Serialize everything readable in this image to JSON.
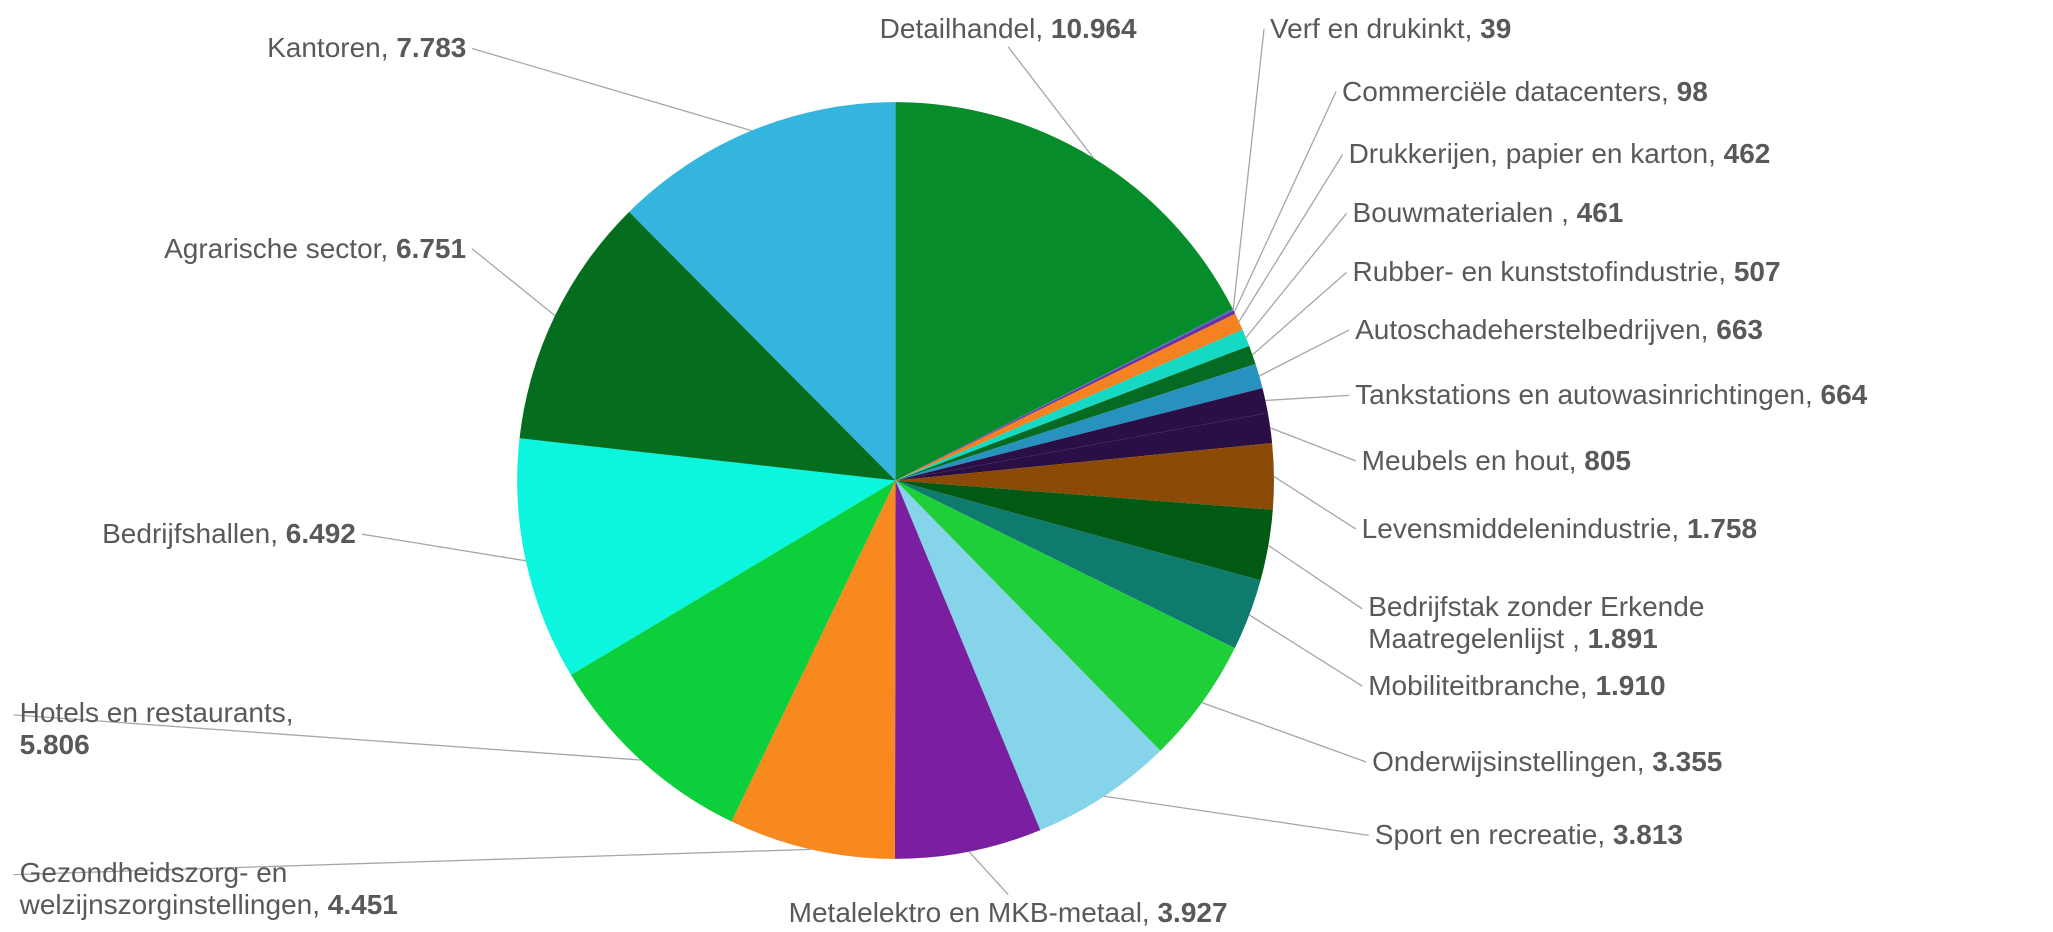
{
  "chart_data": {
    "type": "pie",
    "categories": [
      "Detailhandel,",
      "Verf en drukinkt,",
      "Commerciële datacenters,",
      "Drukkerijen, papier en karton,",
      "Bouwmaterialen ,",
      "Rubber- en kunststofindustrie,",
      "Autoschadeherstelbedrijven,",
      "Tankstations en autowasinrichtingen,",
      "Meubels en hout,",
      "Levensmiddelenindustrie,",
      "Bedrijfstak zonder Erkende Maatregelenlijst ,",
      "Mobiliteitbranche,",
      "Onderwijsinstellingen,",
      "Sport en recreatie,",
      "Metalelektro en MKB-metaal,",
      "Gezondheidszorg- en welzijnszorginstellingen,",
      "Hotels en restaurants,",
      "Bedrijfshallen,",
      "Agrarische sector,",
      "Kantoren,"
    ],
    "values": [
      10964,
      39,
      98,
      462,
      461,
      507,
      663,
      664,
      805,
      1758,
      1891,
      1910,
      3355,
      3813,
      3927,
      4451,
      5806,
      6492,
      6751,
      7783
    ],
    "value_labels": [
      "10.964",
      "39",
      "98",
      "462",
      "461",
      "507",
      "663",
      "664",
      "805",
      "1.758",
      "1.891",
      "1.910",
      "3.355",
      "3.813",
      "3.927",
      "4.451",
      "5.806",
      "6.492",
      "6.751",
      "7.783"
    ],
    "colors": [
      "#068c2b",
      "#4472c4",
      "#7030a0",
      "#f58220",
      "#16d9c4",
      "#066b22",
      "#2892be",
      "#2a0f45",
      "#2a0f45",
      "#8b4a06",
      "#005a14",
      "#0f7a6e",
      "#1ecf3a",
      "#86d4ea",
      "#7a1fa0",
      "#f7891e",
      "#0ccf3c",
      "#0cf5df",
      "#046e1e",
      "#33b5dd"
    ]
  }
}
